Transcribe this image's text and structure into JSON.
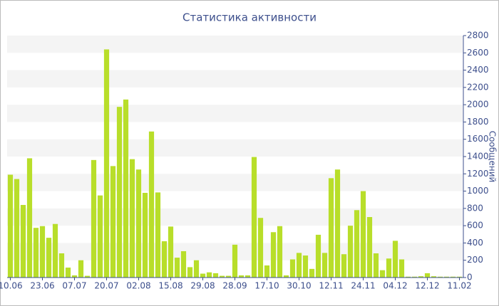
{
  "chart_data": {
    "type": "bar",
    "title": "Статистика активности",
    "y_label": "Сообщений",
    "categories": [
      "10.06",
      null,
      null,
      null,
      null,
      "23.06",
      null,
      null,
      null,
      null,
      "07.07",
      null,
      null,
      null,
      null,
      "20.07",
      null,
      null,
      null,
      null,
      "02.08",
      null,
      null,
      null,
      null,
      "15.08",
      null,
      null,
      null,
      null,
      "29.08",
      null,
      null,
      null,
      null,
      "28.09",
      null,
      null,
      null,
      null,
      "17.10",
      null,
      null,
      null,
      null,
      "30.10",
      null,
      null,
      null,
      null,
      "12.11",
      null,
      null,
      null,
      null,
      "24.11",
      null,
      null,
      null,
      null,
      "04.12",
      null,
      null,
      null,
      null,
      "12.12",
      null,
      null,
      null,
      null,
      "11.02"
    ],
    "values": [
      1190,
      1140,
      840,
      1380,
      575,
      595,
      460,
      620,
      280,
      115,
      25,
      200,
      20,
      1360,
      950,
      2640,
      1290,
      1975,
      2060,
      1370,
      1250,
      980,
      1690,
      985,
      420,
      590,
      230,
      305,
      120,
      200,
      45,
      60,
      50,
      20,
      20,
      380,
      25,
      25,
      1395,
      690,
      140,
      525,
      595,
      25,
      210,
      285,
      255,
      100,
      495,
      285,
      1150,
      1250,
      270,
      600,
      780,
      1000,
      700,
      280,
      85,
      220,
      425,
      210,
      10,
      10,
      15,
      50,
      15,
      10,
      10,
      10,
      10
    ],
    "color": "#b8de2a",
    "ylim": [
      0,
      2800
    ],
    "yticks": [
      0,
      200,
      400,
      600,
      800,
      1000,
      1200,
      1400,
      1600,
      1800,
      2000,
      2200,
      2400,
      2600,
      2800
    ],
    "grid": true
  }
}
